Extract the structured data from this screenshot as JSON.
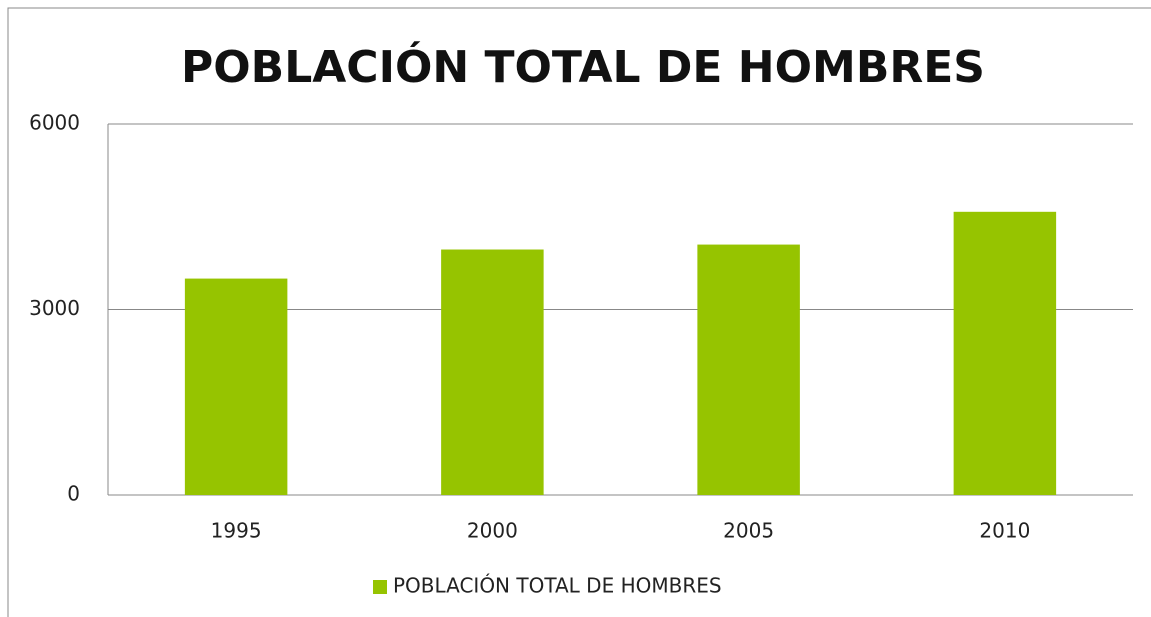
{
  "chart_data": {
    "type": "bar",
    "title": "POBLACIÓN TOTAL DE HOMBRES",
    "categories": [
      "1995",
      "2000",
      "2005",
      "2010"
    ],
    "series": [
      {
        "name": "POBLACIÓN TOTAL DE HOMBRES",
        "color": "#96c400",
        "values": [
          3500,
          3970,
          4050,
          4580
        ]
      }
    ],
    "ylim": [
      0,
      6000
    ],
    "yticks": [
      0,
      3000,
      6000
    ],
    "grid": true,
    "legend": "bottom"
  }
}
